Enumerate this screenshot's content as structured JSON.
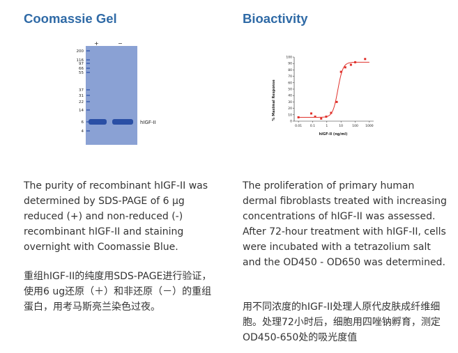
{
  "left": {
    "heading": "Coomassie Gel",
    "gel": {
      "lanes": [
        "+",
        "−"
      ],
      "markers": [
        "200",
        "116",
        "97",
        "66",
        "55",
        "37",
        "31",
        "22",
        "14",
        "6",
        "4"
      ],
      "band_label": "hIGF-II"
    },
    "description_en": "The purity of recombinant hIGF-II was determined by SDS-PAGE of 6 µg reduced (+) and non-reduced (-) recombinant hIGF-II and staining overnight with Coomassie Blue.",
    "description_cn": "重组hIGF-II的纯度用SDS-PAGE进行验证，使用6 ug还原（＋）和非还原（－）的重组蛋白，用考马斯亮兰染色过夜。"
  },
  "right": {
    "heading": "Bioactivity",
    "description_en": "The proliferation of primary human dermal fibroblasts treated with increasing concentrations of hIGF-II was assessed. After 72-hour treatment with hIGF-II, cells were incubated with a tetrazolium salt and the OD450 - OD650 was determined.",
    "description_cn": "用不同浓度的hIGF-II处理人原代皮肤成纤维细胞。处理72小时后，细胞用四唑钠孵育，测定OD450-650处的吸光度值"
  },
  "chart_data": {
    "type": "scatter",
    "xlabel": "hIGF-II (ng/ml)",
    "ylabel": "% Maximal Response",
    "xscale": "log",
    "xlim": [
      0.005,
      2000
    ],
    "ylim": [
      0,
      100
    ],
    "xticks": [
      "0.01",
      "0.1",
      "1",
      "10",
      "100",
      "1000"
    ],
    "yticks": [
      "0",
      "10",
      "20",
      "30",
      "40",
      "50",
      "60",
      "70",
      "80",
      "90",
      "100"
    ],
    "series": [
      {
        "x": [
          0.01,
          0.08,
          0.15,
          0.4,
          0.9,
          2,
          5,
          10,
          20,
          50,
          100,
          500
        ],
        "y": [
          6,
          12,
          7,
          4,
          7,
          13,
          30,
          77,
          84,
          88,
          92,
          97
        ]
      }
    ],
    "colors": {
      "series": "#e0312b"
    }
  }
}
